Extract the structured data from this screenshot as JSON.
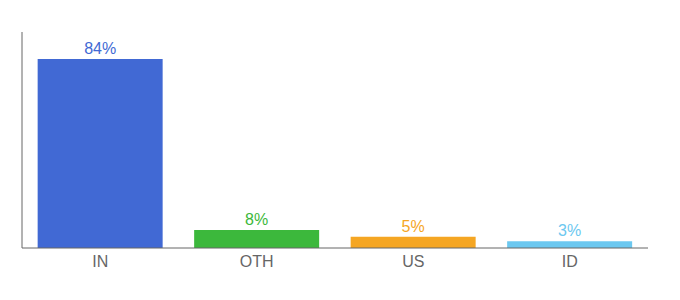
{
  "chart_data": {
    "type": "bar",
    "categories": [
      "IN",
      "OTH",
      "US",
      "ID"
    ],
    "values": [
      84,
      8,
      5,
      3
    ],
    "value_labels": [
      "84%",
      "8%",
      "5%",
      "3%"
    ],
    "colors": [
      "#4169d4",
      "#3cb83c",
      "#f5a623",
      "#6cc8f0"
    ],
    "ylim": [
      0,
      96
    ],
    "data_labels": true,
    "tick_labels": "x",
    "grid": false
  }
}
